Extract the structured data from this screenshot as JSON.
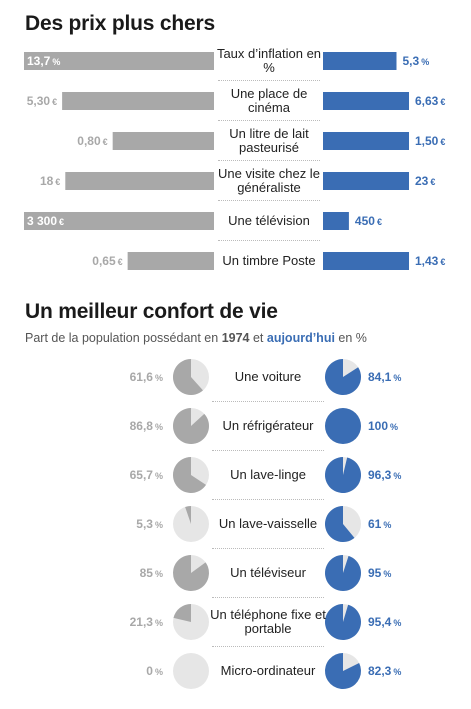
{
  "section1": {
    "title": "Des prix plus chers"
  },
  "section2": {
    "title": "Un meilleur confort de vie",
    "subtitle_pre": "Part de la population possédant en ",
    "subtitle_year1": "1974",
    "subtitle_mid": " et ",
    "subtitle_year2": "aujourd’hui",
    "subtitle_post": " en %"
  },
  "colors": {
    "old": "#a8a8a8",
    "new": "#3a6db4",
    "pie_bg": "#e6e6e6"
  },
  "chart_data": [
    {
      "type": "bar",
      "rows": [
        {
          "label": "Taux d’inflation en %",
          "old": 13.7,
          "old_text": "13,7",
          "old_unit": "%",
          "new": 5.3,
          "new_text": "5,3",
          "new_unit": "%",
          "old_inside": true
        },
        {
          "label": "Une place de cinéma",
          "old": 5.3,
          "old_text": "5,30",
          "old_unit": "€",
          "new": 6.63,
          "new_text": "6,63",
          "new_unit": "€"
        },
        {
          "label": "Un litre de lait pasteurisé",
          "old": 0.8,
          "old_text": "0,80",
          "old_unit": "€",
          "new": 1.5,
          "new_text": "1,50",
          "new_unit": "€"
        },
        {
          "label": "Une visite chez le généraliste",
          "old": 18,
          "old_text": "18",
          "old_unit": "€",
          "new": 23,
          "new_text": "23",
          "new_unit": "€"
        },
        {
          "label": "Une télévision",
          "old": 3300,
          "old_text": "3 300",
          "old_unit": "€",
          "new": 450,
          "new_text": "450",
          "new_unit": "€",
          "old_inside": true
        },
        {
          "label": "Un timbre Poste",
          "old": 0.65,
          "old_text": "0,65",
          "old_unit": "€",
          "new": 1.43,
          "new_text": "1,43",
          "new_unit": "€"
        }
      ]
    },
    {
      "type": "pie",
      "rows": [
        {
          "label": "Une voiture",
          "y1974": 61.6,
          "y1974_text": "61,6",
          "now": 84.1,
          "now_text": "84,1",
          "unit": "%"
        },
        {
          "label": "Un réfrigérateur",
          "y1974": 86.8,
          "y1974_text": "86,8",
          "now": 100,
          "now_text": "100",
          "unit": "%"
        },
        {
          "label": "Un lave-linge",
          "y1974": 65.7,
          "y1974_text": "65,7",
          "now": 96.3,
          "now_text": "96,3",
          "unit": "%"
        },
        {
          "label": "Un lave-vaisselle",
          "y1974": 5.3,
          "y1974_text": "5,3",
          "now": 61,
          "now_text": "61",
          "unit": "%"
        },
        {
          "label": "Un téléviseur",
          "y1974": 85,
          "y1974_text": "85",
          "now": 95,
          "now_text": "95",
          "unit": "%"
        },
        {
          "label": "Un téléphone fixe et portable",
          "y1974": 21.3,
          "y1974_text": "21,3",
          "now": 95.4,
          "now_text": "95,4",
          "unit": "%"
        },
        {
          "label": "Micro-ordinateur",
          "y1974": 0,
          "y1974_text": "0",
          "now": 82.3,
          "now_text": "82,3",
          "unit": "%"
        }
      ]
    }
  ]
}
